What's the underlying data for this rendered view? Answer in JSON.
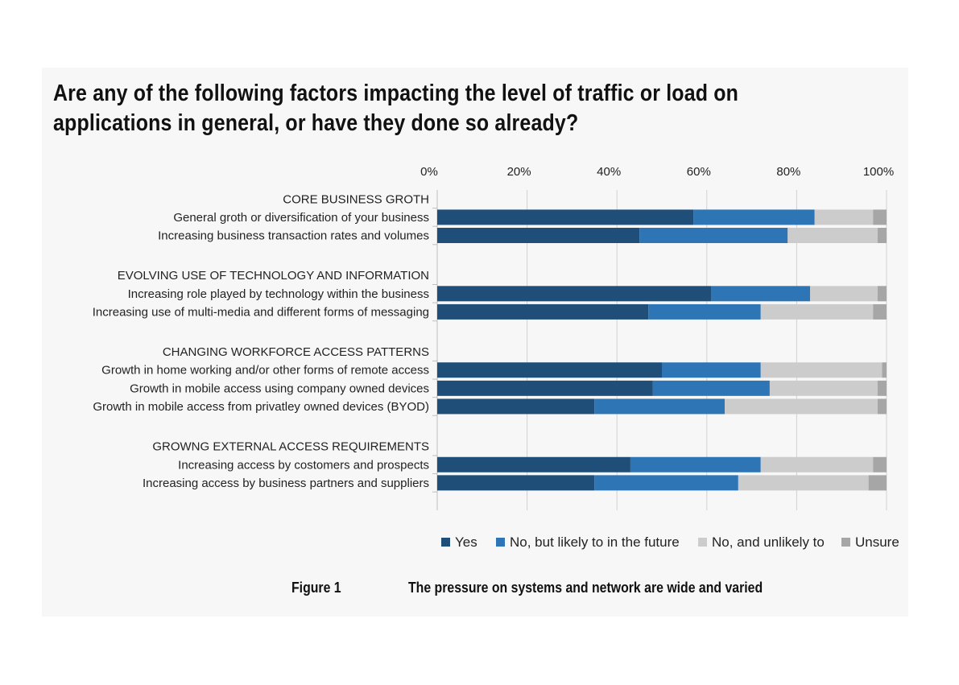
{
  "chart_data": {
    "type": "bar",
    "orientation": "horizontal",
    "stacked": true,
    "title": "Are any of the following factors impacting the level of traffic or load on applications in general, or have they done so already?",
    "x_ticks": [
      "0%",
      "20%",
      "40%",
      "60%",
      "80%",
      "100%"
    ],
    "xlim": [
      0,
      100
    ],
    "grid": true,
    "legend_position": "bottom-right",
    "groups": [
      {
        "heading": "CORE BUSINESS GROTH",
        "items": [
          {
            "label": "General groth or diversification of your business",
            "values": [
              57,
              27,
              13,
              3
            ]
          },
          {
            "label": "Increasing business transaction rates and volumes",
            "values": [
              45,
              33,
              20,
              2
            ]
          }
        ]
      },
      {
        "heading": "EVOLVING USE OF TECHNOLOGY AND  INFORMATION",
        "items": [
          {
            "label": "Increasing role played by technology within the business",
            "values": [
              61,
              22,
              15,
              2
            ]
          },
          {
            "label": "Increasing use of multi-media and different forms of messaging",
            "values": [
              47,
              25,
              25,
              3
            ]
          }
        ]
      },
      {
        "heading": "CHANGING WORKFORCE ACCESS PATTERNS",
        "items": [
          {
            "label": "Growth in home working and/or other forms of remote access",
            "values": [
              50,
              22,
              27,
              1
            ]
          },
          {
            "label": "Growth in mobile access using company owned devices",
            "values": [
              48,
              26,
              24,
              2
            ]
          },
          {
            "label": "Growth in mobile access from privatley owned devices (BYOD)",
            "values": [
              35,
              29,
              34,
              2
            ]
          }
        ]
      },
      {
        "heading": "GROWNG EXTERNAL ACCESS REQUIREMENTS",
        "items": [
          {
            "label": "Increasing access by costomers and prospects",
            "values": [
              43,
              29,
              25,
              3
            ]
          },
          {
            "label": "Increasing access by business partners and suppliers",
            "values": [
              35,
              32,
              29,
              4
            ]
          }
        ]
      }
    ],
    "series": [
      {
        "name": "Yes",
        "color": "#1f4e79"
      },
      {
        "name": "No, but likely to in the future",
        "color": "#2e75b6"
      },
      {
        "name": "No, and unlikely to",
        "color": "#cccccc"
      },
      {
        "name": "Unsure",
        "color": "#a6a6a6"
      }
    ]
  },
  "caption": {
    "label": "Figure 1",
    "text": "The pressure on systems and network are wide and varied"
  }
}
